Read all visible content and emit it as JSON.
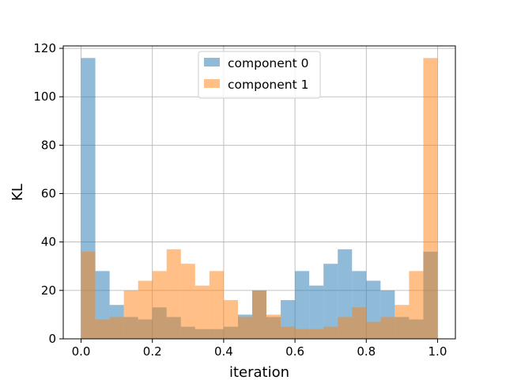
{
  "chart_data": {
    "type": "bar",
    "subtype": "overlapping-histogram",
    "xlabel": "iteration",
    "ylabel": "KL",
    "xlim": [
      -0.05,
      1.05
    ],
    "ylim": [
      0,
      121
    ],
    "x_ticks": [
      "0.0",
      "0.2",
      "0.4",
      "0.6",
      "0.8",
      "1.0"
    ],
    "y_ticks": [
      "0",
      "20",
      "40",
      "60",
      "80",
      "100",
      "120"
    ],
    "grid": true,
    "legend_position": "top-center",
    "bins": 25,
    "bin_range": [
      0,
      1
    ],
    "series": [
      {
        "name": "component 0",
        "color": "#1f77b4",
        "alpha": 0.5,
        "values": [
          116,
          28,
          14,
          9,
          8,
          13,
          9,
          5,
          4,
          4,
          5,
          10,
          20,
          9,
          16,
          28,
          22,
          31,
          37,
          28,
          24,
          20,
          9,
          8,
          36
        ]
      },
      {
        "name": "component 1",
        "color": "#ff7f0e",
        "alpha": 0.5,
        "values": [
          36,
          8,
          9,
          20,
          24,
          28,
          37,
          31,
          22,
          28,
          16,
          9,
          20,
          10,
          5,
          4,
          4,
          5,
          9,
          13,
          7,
          9,
          14,
          28,
          116
        ]
      }
    ]
  }
}
